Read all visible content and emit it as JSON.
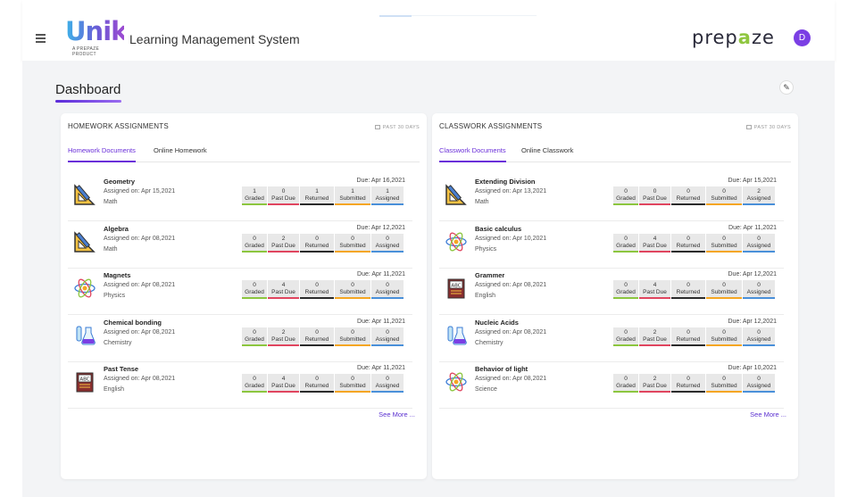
{
  "header": {
    "logo_text": "Unik",
    "logo_sub": "A PREPAZE PRODUCT",
    "app_title": "Learning Management System",
    "brand_prefix": "prep",
    "brand_accent": "a",
    "brand_suffix": "ze",
    "avatar_initial": "D"
  },
  "page": {
    "title": "Dashboard"
  },
  "stat_labels": [
    "Graded",
    "Past Due",
    "Returned",
    "Submitted",
    "Assigned"
  ],
  "stat_colors": [
    "#8cc63f",
    "#e0455f",
    "#2b2b2b",
    "#f5a623",
    "#4a90d9"
  ],
  "panels": [
    {
      "title": "HOMEWORK ASSIGNMENTS",
      "period": "PAST 30 DAYS",
      "tabs": [
        "Homework Documents",
        "Online Homework"
      ],
      "see_more": "See More ...",
      "items": [
        {
          "icon": "geometry-icon",
          "name": "Geometry",
          "assigned": "Assigned on: Apr 15,2021",
          "subject": "Math",
          "due": "Due: Apr 16,2021",
          "stats": [
            "1",
            "0",
            "1",
            "1",
            "1"
          ]
        },
        {
          "icon": "geometry-icon",
          "name": "Algebra",
          "assigned": "Assigned on: Apr 08,2021",
          "subject": "Math",
          "due": "Due: Apr 12,2021",
          "stats": [
            "0",
            "2",
            "0",
            "0",
            "0"
          ]
        },
        {
          "icon": "atom-icon",
          "name": "Magnets",
          "assigned": "Assigned on: Apr 08,2021",
          "subject": "Physics",
          "due": "Due: Apr 11,2021",
          "stats": [
            "0",
            "4",
            "0",
            "0",
            "0"
          ]
        },
        {
          "icon": "flask-icon",
          "name": "Chemical bonding",
          "assigned": "Assigned on: Apr 08,2021",
          "subject": "Chemistry",
          "due": "Due: Apr 11,2021",
          "stats": [
            "0",
            "2",
            "0",
            "0",
            "0"
          ]
        },
        {
          "icon": "book-icon",
          "name": "Past Tense",
          "assigned": "Assigned on: Apr 08,2021",
          "subject": "English",
          "due": "Due: Apr 11,2021",
          "stats": [
            "0",
            "4",
            "0",
            "0",
            "0"
          ]
        }
      ]
    },
    {
      "title": "CLASSWORK ASSIGNMENTS",
      "period": "PAST 30 DAYS",
      "tabs": [
        "Classwork Documents",
        "Online Classwork"
      ],
      "see_more": "See More ...",
      "items": [
        {
          "icon": "geometry-icon",
          "name": "Extending Division",
          "assigned": "Assigned on: Apr 13,2021",
          "subject": "Math",
          "due": "Due: Apr 15,2021",
          "stats": [
            "0",
            "0",
            "0",
            "0",
            "2"
          ]
        },
        {
          "icon": "atom-icon",
          "name": "Basic calculus",
          "assigned": "Assigned on: Apr 10,2021",
          "subject": "Physics",
          "due": "Due: Apr 11,2021",
          "stats": [
            "0",
            "4",
            "0",
            "0",
            "0"
          ]
        },
        {
          "icon": "book-icon",
          "name": "Grammer",
          "assigned": "Assigned on: Apr 08,2021",
          "subject": "English",
          "due": "Due: Apr 12,2021",
          "stats": [
            "0",
            "4",
            "0",
            "0",
            "0"
          ]
        },
        {
          "icon": "flask-icon",
          "name": "Nucleic Acids",
          "assigned": "Assigned on: Apr 08,2021",
          "subject": "Chemistry",
          "due": "Due: Apr 12,2021",
          "stats": [
            "0",
            "2",
            "0",
            "0",
            "0"
          ]
        },
        {
          "icon": "atom-icon",
          "name": "Behavior of light",
          "assigned": "Assigned on: Apr 08,2021",
          "subject": "Science",
          "due": "Due: Apr 10,2021",
          "stats": [
            "0",
            "2",
            "0",
            "0",
            "0"
          ]
        }
      ]
    }
  ]
}
